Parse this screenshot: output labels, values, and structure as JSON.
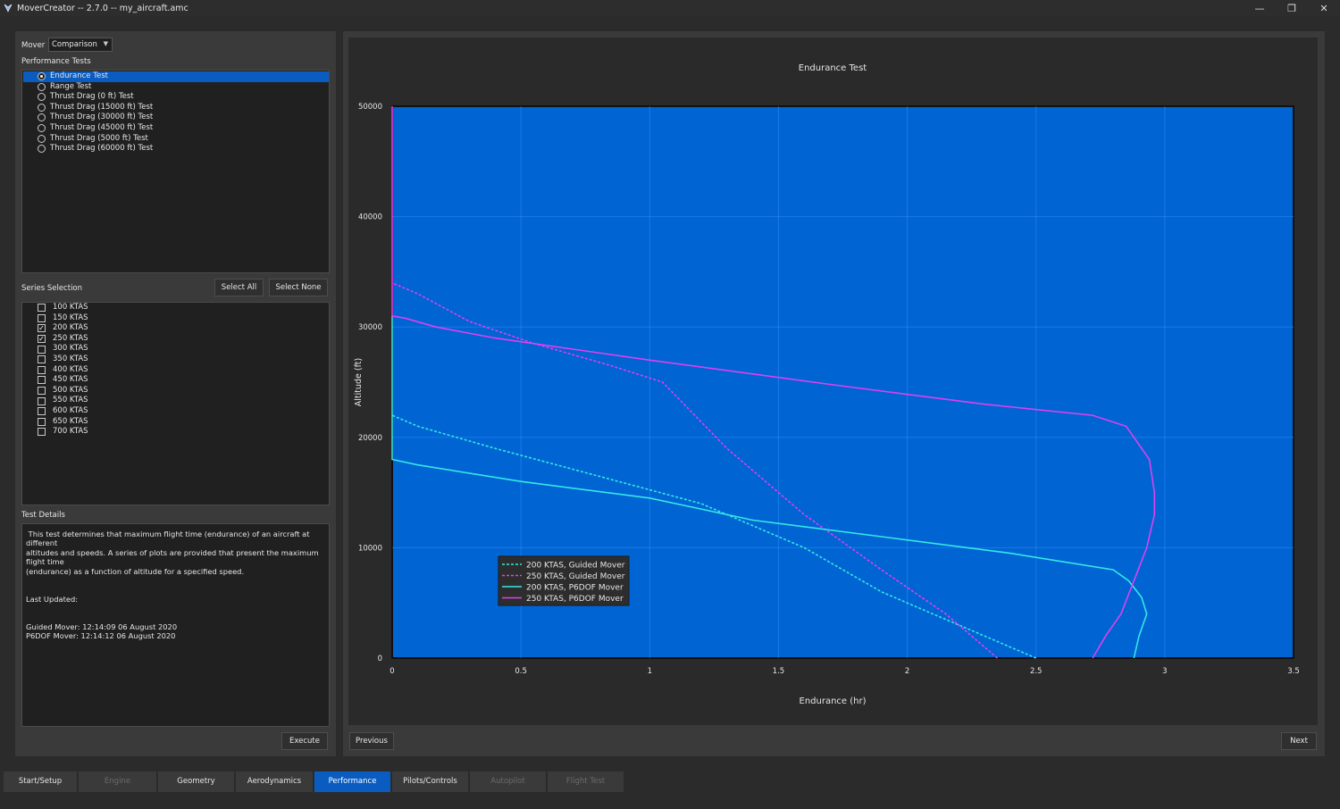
{
  "window": {
    "title": "MoverCreator -- 2.7.0 -- my_aircraft.amc",
    "controls": [
      "minimize-icon",
      "restore-icon",
      "close-icon"
    ]
  },
  "left": {
    "mover_label": "Mover",
    "mover_value": "Comparison",
    "performance_tests_label": "Performance Tests",
    "tests": [
      "Endurance Test",
      "Range Test",
      "Thrust Drag (0 ft) Test",
      "Thrust Drag (15000 ft) Test",
      "Thrust Drag (30000 ft) Test",
      "Thrust Drag (45000 ft) Test",
      "Thrust Drag (5000 ft) Test",
      "Thrust Drag (60000 ft) Test"
    ],
    "selected_test_index": 0,
    "series_selection_label": "Series Selection",
    "select_all": "Select All",
    "select_none": "Select None",
    "series": [
      {
        "label": "100 KTAS",
        "checked": false
      },
      {
        "label": "150 KTAS",
        "checked": false
      },
      {
        "label": "200 KTAS",
        "checked": true
      },
      {
        "label": "250 KTAS",
        "checked": true
      },
      {
        "label": "300 KTAS",
        "checked": false
      },
      {
        "label": "350 KTAS",
        "checked": false
      },
      {
        "label": "400 KTAS",
        "checked": false
      },
      {
        "label": "450 KTAS",
        "checked": false
      },
      {
        "label": "500 KTAS",
        "checked": false
      },
      {
        "label": "550 KTAS",
        "checked": false
      },
      {
        "label": "600 KTAS",
        "checked": false
      },
      {
        "label": "650 KTAS",
        "checked": false
      },
      {
        "label": "700 KTAS",
        "checked": false
      }
    ],
    "test_details_label": "Test Details",
    "details_text": " This test determines that maximum flight time (endurance) of an aircraft at different\naltitudes and speeds. A series of plots are provided that present the maximum flight time\n(endurance) as a function of altitude for a specified speed.\n\n\nLast Updated:\n\n\nGuided Mover: 12:14:09 06 August 2020\nP6DOF Mover: 12:14:12 06 August 2020",
    "execute": "Execute"
  },
  "right": {
    "previous": "Previous",
    "next": "Next"
  },
  "tabs": [
    {
      "label": "Start/Setup",
      "state": "normal"
    },
    {
      "label": "Engine",
      "state": "disabled"
    },
    {
      "label": "Geometry",
      "state": "normal"
    },
    {
      "label": "Aerodynamics",
      "state": "normal"
    },
    {
      "label": "Performance",
      "state": "active"
    },
    {
      "label": "Pilots/Controls",
      "state": "normal"
    },
    {
      "label": "Autopilot",
      "state": "disabled"
    },
    {
      "label": "Flight Test",
      "state": "disabled"
    }
  ],
  "colors": {
    "plot_bg": "#0064d2",
    "accent": "#0a5cc0",
    "cyan": "#34e8e8",
    "magenta": "#e040f0"
  },
  "chart_data": {
    "type": "line",
    "title": "Endurance Test",
    "xlabel": "Endurance (hr)",
    "ylabel": "Altitude (ft)",
    "xlim": [
      0,
      3.5
    ],
    "ylim": [
      0,
      50000
    ],
    "xticks": [
      "0",
      "0.5",
      "1",
      "1.5",
      "2",
      "2.5",
      "3",
      "3.5"
    ],
    "yticks": [
      "0",
      "10000",
      "20000",
      "30000",
      "40000",
      "50000"
    ],
    "grid": true,
    "legend_position": "lower-left",
    "series": [
      {
        "name": "200 KTAS, Guided Mover",
        "color": "#34e8e8",
        "dash": true,
        "x": [
          2.5,
          2.3,
          2.1,
          1.9,
          1.6,
          1.2,
          0.8,
          0.4,
          0.1,
          0
        ],
        "y": [
          0,
          2000,
          4000,
          6000,
          10000,
          14000,
          16500,
          19000,
          21000,
          22000
        ]
      },
      {
        "name": "250 KTAS, Guided Mover",
        "color": "#e040f0",
        "dash": true,
        "x": [
          2.35,
          2.15,
          1.9,
          1.6,
          1.3,
          1.05,
          0.85,
          0.55,
          0.3,
          0.1,
          0
        ],
        "y": [
          0,
          4000,
          8000,
          13000,
          19000,
          25000,
          26500,
          28500,
          30500,
          33000,
          34000
        ]
      },
      {
        "name": "200 KTAS, P6DOF Mover",
        "color": "#34e8e8",
        "dash": false,
        "x": [
          2.88,
          2.9,
          2.93,
          2.91,
          2.86,
          2.8,
          2.4,
          1.9,
          1.4,
          1.0,
          0.5,
          0.1,
          0,
          0
        ],
        "y": [
          0,
          2000,
          4000,
          5500,
          7000,
          8000,
          9500,
          11000,
          12500,
          14500,
          16000,
          17500,
          18000,
          31000
        ]
      },
      {
        "name": "250 KTAS, P6DOF Mover",
        "color": "#e040f0",
        "dash": false,
        "x": [
          2.72,
          2.77,
          2.83,
          2.88,
          2.93,
          2.96,
          2.96,
          2.94,
          2.85,
          2.72,
          2.3,
          1.7,
          1.0,
          0.4,
          0.17,
          0.05,
          0,
          0
        ],
        "y": [
          0,
          2000,
          4000,
          7000,
          10000,
          13000,
          15000,
          18000,
          21000,
          22000,
          23000,
          24800,
          27000,
          29000,
          30000,
          30800,
          31000,
          50000
        ]
      }
    ]
  }
}
